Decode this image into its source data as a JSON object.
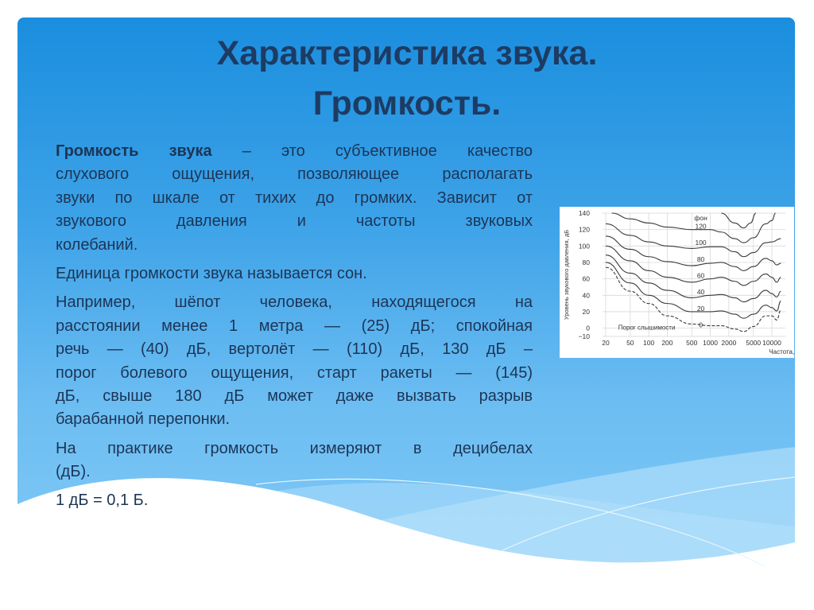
{
  "title": {
    "line1": "Характеристика звука.",
    "line2": "Громкость."
  },
  "body": {
    "p1": {
      "term": "Громкость звука",
      "first_rest": " – это субъективное качество",
      "lines": [
        "слухового ощущения, позволяющее располагать",
        "звуки по шкале от тихих до громких. Зависит от",
        "звукового давления и частоты звуковых",
        "колебаний."
      ]
    },
    "p2": [
      "Единица громкости звука называется сон."
    ],
    "p3": [
      "Например, шёпот человека, находящегося на",
      "расстоянии менее 1 метра — (25) дБ; спокойная",
      "речь — (40) дБ, вертолёт — (110) дБ, 130 дБ –",
      "порог болевого ощущения, старт ракеты — (145)",
      "дБ, свыше 180 дБ может даже вызвать разрыв",
      "барабанной перепонки."
    ],
    "p4": [
      "На практике громкость измеряют в децибелах",
      "(дБ)."
    ],
    "p5": [
      "1 дБ = 0,1 Б."
    ]
  },
  "colors": {
    "title": "#1d3b63",
    "text": "#1c3556",
    "background_top": "#1a8ede",
    "background_bottom": "#85ccf7"
  },
  "chart_data": {
    "type": "line",
    "xlabel": "Частота, Гц",
    "ylabel": "Уровень звукового давления, дБ",
    "x_scale": "log",
    "xlim": [
      20,
      14000
    ],
    "ylim": [
      -10,
      140
    ],
    "x_ticks": [
      20,
      50,
      100,
      200,
      500,
      1000,
      2000,
      5000,
      10000
    ],
    "y_ticks": [
      140,
      120,
      100,
      80,
      60,
      40,
      20,
      0,
      -10
    ],
    "grid": true,
    "unit_label": "фон",
    "threshold_label": "Порог слышимости",
    "series": [
      {
        "name": "120",
        "points": [
          [
            25,
            140
          ],
          [
            50,
            133
          ],
          [
            100,
            128
          ],
          [
            200,
            123
          ],
          [
            500,
            120
          ],
          [
            1000,
            120
          ],
          [
            1500,
            117
          ],
          [
            2500,
            109
          ],
          [
            3500,
            104
          ],
          [
            5000,
            110
          ],
          [
            8000,
            127
          ],
          [
            10000,
            131
          ],
          [
            11500,
            140
          ]
        ]
      },
      {
        "name": "",
        "points": [
          [
            1500,
            140
          ],
          [
            2500,
            128
          ],
          [
            3500,
            122
          ],
          [
            4500,
            128
          ],
          [
            5500,
            140
          ]
        ]
      },
      {
        "name": "100",
        "points": [
          [
            20,
            127
          ],
          [
            50,
            113
          ],
          [
            100,
            105
          ],
          [
            200,
            100
          ],
          [
            500,
            97
          ],
          [
            1000,
            99
          ],
          [
            1500,
            99
          ],
          [
            2500,
            93
          ],
          [
            3500,
            87
          ],
          [
            5000,
            92
          ],
          [
            8000,
            104
          ],
          [
            10000,
            105
          ],
          [
            14000,
            109
          ]
        ]
      },
      {
        "name": "80",
        "points": [
          [
            20,
            112
          ],
          [
            50,
            96
          ],
          [
            100,
            87
          ],
          [
            200,
            81
          ],
          [
            500,
            76
          ],
          [
            1000,
            79
          ],
          [
            1500,
            80
          ],
          [
            2500,
            75
          ],
          [
            3500,
            70
          ],
          [
            5000,
            75
          ],
          [
            8000,
            85
          ],
          [
            10000,
            82
          ],
          [
            12000,
            77
          ],
          [
            14000,
            79
          ]
        ]
      },
      {
        "name": "60",
        "points": [
          [
            20,
            100
          ],
          [
            50,
            82
          ],
          [
            100,
            70
          ],
          [
            200,
            62
          ],
          [
            500,
            56
          ],
          [
            1000,
            60
          ],
          [
            1500,
            62
          ],
          [
            2500,
            57
          ],
          [
            3500,
            52
          ],
          [
            5000,
            57
          ],
          [
            8000,
            66
          ],
          [
            10000,
            62
          ],
          [
            12000,
            56
          ],
          [
            14000,
            62
          ]
        ]
      },
      {
        "name": "40",
        "points": [
          [
            20,
            89
          ],
          [
            50,
            67
          ],
          [
            100,
            55
          ],
          [
            200,
            46
          ],
          [
            500,
            37
          ],
          [
            1000,
            40
          ],
          [
            1500,
            41
          ],
          [
            2500,
            37
          ],
          [
            3500,
            32
          ],
          [
            5000,
            36
          ],
          [
            8000,
            46
          ],
          [
            10000,
            42
          ],
          [
            12000,
            38
          ],
          [
            14000,
            45
          ]
        ]
      },
      {
        "name": "20",
        "points": [
          [
            20,
            80
          ],
          [
            50,
            55
          ],
          [
            100,
            40
          ],
          [
            200,
            30
          ],
          [
            500,
            20
          ],
          [
            1000,
            20
          ],
          [
            1500,
            21
          ],
          [
            2500,
            17
          ],
          [
            3500,
            12
          ],
          [
            5000,
            17
          ],
          [
            8000,
            28
          ],
          [
            10000,
            25
          ],
          [
            12000,
            21
          ],
          [
            14000,
            33
          ]
        ]
      },
      {
        "name": "0",
        "dashed": true,
        "points": [
          [
            20,
            74
          ],
          [
            50,
            45
          ],
          [
            100,
            30
          ],
          [
            200,
            15
          ],
          [
            500,
            5
          ],
          [
            1000,
            3
          ],
          [
            1500,
            3
          ],
          [
            2500,
            -1
          ],
          [
            3500,
            -4
          ],
          [
            5000,
            2
          ],
          [
            8000,
            15
          ],
          [
            10000,
            15
          ],
          [
            12000,
            10
          ],
          [
            14000,
            22
          ]
        ]
      }
    ]
  }
}
